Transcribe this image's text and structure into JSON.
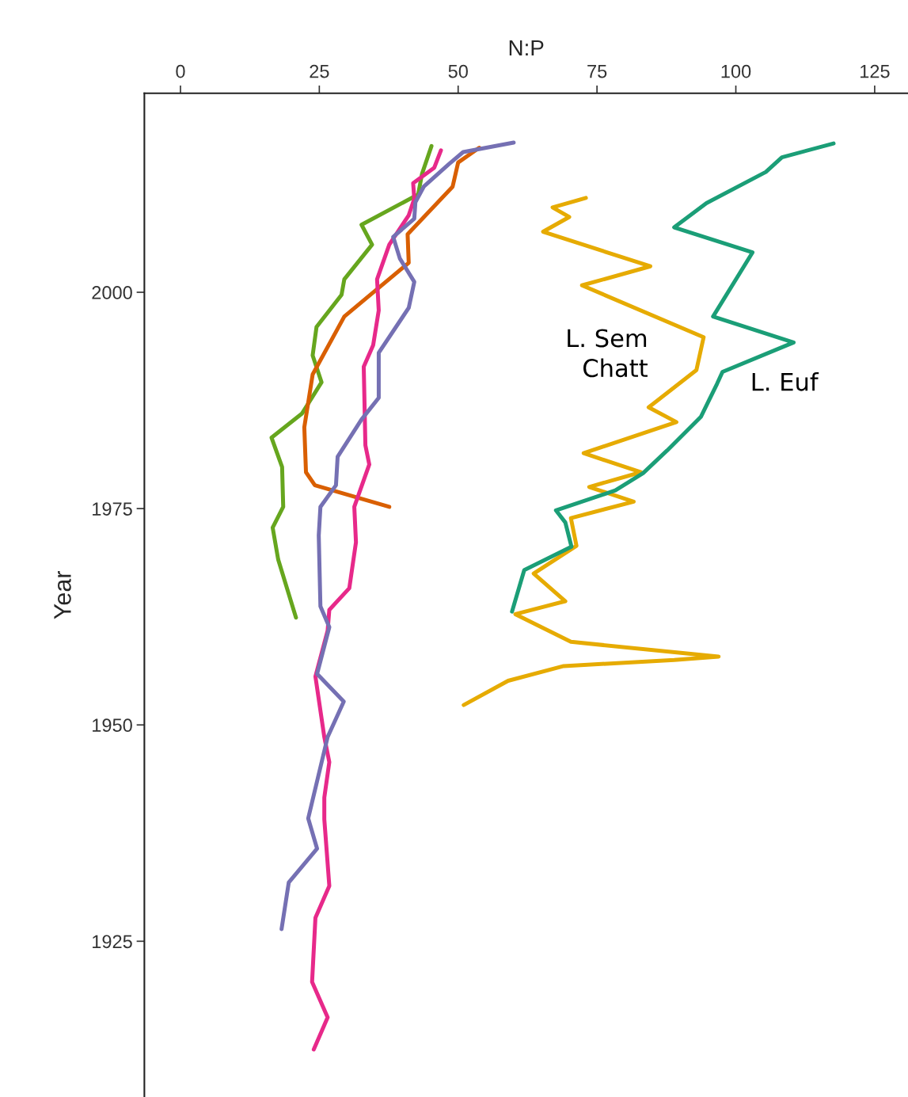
{
  "chart_data": {
    "type": "line",
    "xlabel": "N:P",
    "ylabel": "Year",
    "xlim": [
      -6.5,
      131
    ],
    "xticks": [
      0,
      25,
      50,
      75,
      100,
      125
    ],
    "ylim": [
      1907,
      2023
    ],
    "yticks": [
      1925,
      1950,
      1975,
      2000
    ],
    "series": [
      {
        "color": "#66a61e",
        "x": [
          45.2,
          43.5,
          42.8,
          32.6,
          34.5,
          29.5,
          29.0,
          24.5,
          23.8,
          25.4,
          21.9,
          16.4,
          18.3,
          18.5,
          16.6,
          17.6,
          20.8
        ],
        "values": [
          2016.9,
          2013.7,
          2011.3,
          2007.8,
          2005.5,
          2001.5,
          1999.7,
          1996.0,
          1992.7,
          1989.6,
          1986.0,
          1983.2,
          1979.8,
          1975.2,
          1972.8,
          1969.1,
          1962.4
        ]
      },
      {
        "color": "#d95f02",
        "x": [
          53.8,
          50.0,
          49.0,
          40.9,
          41.1,
          29.5,
          23.8,
          22.3,
          22.6,
          24.2,
          37.6
        ],
        "values": [
          2016.7,
          2015.0,
          2012.2,
          2006.7,
          2003.4,
          1997.2,
          1990.5,
          1984.4,
          1979.2,
          1977.7,
          1975.2
        ]
      },
      {
        "color": "#e7298a",
        "x": [
          46.9,
          45.7,
          41.9,
          42.1,
          41.1,
          37.6,
          35.4,
          35.7,
          34.7,
          33.0,
          33.3,
          34.0,
          31.3,
          31.6,
          30.4,
          26.8,
          26.5,
          24.3,
          25.9,
          26.8,
          25.9,
          25.9,
          26.8,
          24.3,
          23.7,
          26.5,
          24.0
        ],
        "values": [
          2016.4,
          2014.4,
          2012.6,
          2010.8,
          2008.9,
          2005.5,
          2001.5,
          1997.9,
          1993.9,
          1991.4,
          1982.3,
          1980.1,
          1975.2,
          1971.1,
          1965.8,
          1963.3,
          1960.9,
          1955.6,
          1948.6,
          1945.7,
          1941.6,
          1939.1,
          1931.4,
          1927.7,
          1920.3,
          1916.2,
          1912.5
        ]
      },
      {
        "color": "#7570b3",
        "x": [
          60.0,
          50.9,
          48.3,
          43.8,
          42.3,
          42.1,
          38.3,
          39.5,
          42.1,
          41.1,
          35.7,
          35.7,
          32.6,
          28.3,
          28.0,
          25.2,
          24.9,
          25.2,
          26.8,
          24.6,
          29.4,
          26.5,
          23.0,
          24.6,
          19.5,
          18.2
        ],
        "values": [
          2017.3,
          2016.2,
          2014.8,
          2012.2,
          2010.4,
          2008.5,
          2006.4,
          2003.9,
          2001.2,
          1998.2,
          1993.0,
          1987.8,
          1985.3,
          1981.0,
          1977.7,
          1975.2,
          1971.9,
          1963.7,
          1961.3,
          1955.9,
          1952.7,
          1948.6,
          1939.2,
          1935.7,
          1931.8,
          1926.4
        ]
      },
      {
        "name": "L. Sem\nChatt",
        "color": "#e6ab02",
        "x": [
          73.0,
          67.0,
          70.0,
          65.3,
          84.6,
          72.3,
          94.2,
          92.9,
          84.3,
          89.3,
          72.6,
          82.9,
          73.6,
          81.6,
          70.3,
          71.3,
          63.6,
          69.3,
          60.3,
          70.3,
          96.9,
          88.9,
          69.0,
          59.0,
          51.0
        ],
        "values": [
          2010.9,
          2009.8,
          2008.7,
          2007.0,
          2003.0,
          2000.8,
          1994.8,
          1991.0,
          1986.7,
          1985.0,
          1981.4,
          1979.2,
          1977.5,
          1975.8,
          1973.9,
          1970.7,
          1967.5,
          1964.3,
          1962.8,
          1959.6,
          1957.9,
          1957.5,
          1956.8,
          1955.1,
          1952.3
        ]
      },
      {
        "name": "L. Euf",
        "color": "#1b9e77",
        "x": [
          117.6,
          108.3,
          105.4,
          94.7,
          88.9,
          103.0,
          95.9,
          110.4,
          97.6,
          96.6,
          93.7,
          87.6,
          83.3,
          78.3,
          67.6,
          69.3,
          70.4,
          61.9,
          59.7
        ],
        "values": [
          2017.2,
          2015.6,
          2013.9,
          2010.3,
          2007.5,
          2004.6,
          1997.2,
          1994.2,
          1990.8,
          1989.4,
          1985.6,
          1981.7,
          1979.1,
          1977.1,
          1974.8,
          1973.4,
          1970.6,
          1967.9,
          1963.1
        ]
      }
    ]
  }
}
